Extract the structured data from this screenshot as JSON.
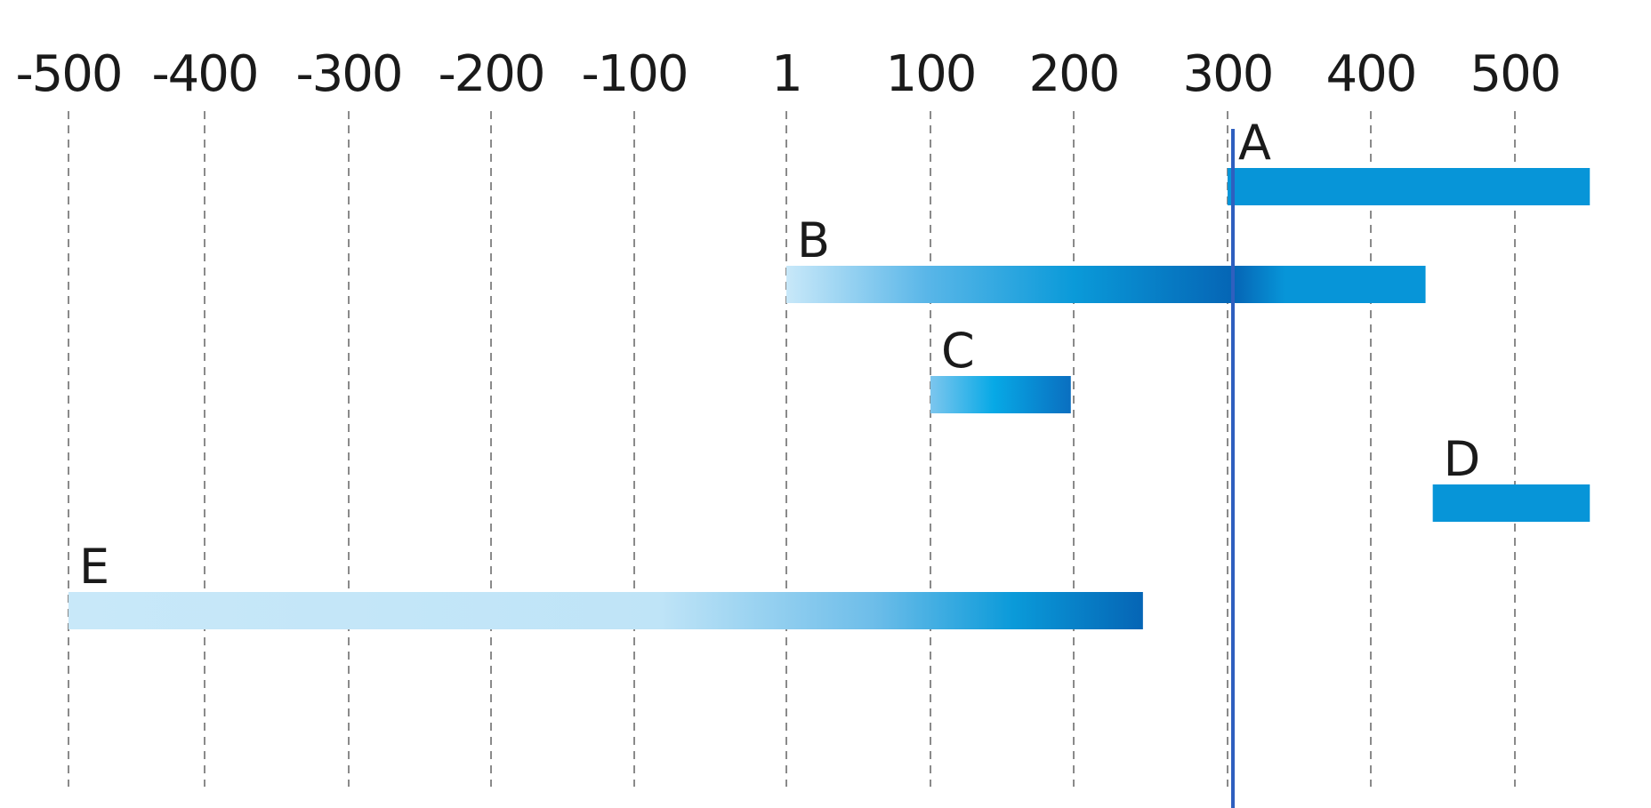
{
  "chart_data": {
    "type": "bar",
    "orientation": "horizontal-range",
    "title": "",
    "xlabel": "",
    "ylabel": "",
    "grid": true,
    "legend": "none",
    "x_ticks": [
      {
        "value": -500,
        "label": "-500"
      },
      {
        "value": -400,
        "label": "-400"
      },
      {
        "value": -300,
        "label": "-300"
      },
      {
        "value": -200,
        "label": "-200"
      },
      {
        "value": -100,
        "label": "-100"
      },
      {
        "value": 1,
        "label": "1"
      },
      {
        "value": 100,
        "label": "100"
      },
      {
        "value": 200,
        "label": "200"
      },
      {
        "value": 300,
        "label": "300"
      },
      {
        "value": 400,
        "label": "400"
      },
      {
        "value": 500,
        "label": "500"
      }
    ],
    "xlim": [
      -500,
      550
    ],
    "reference_line": {
      "x": 300,
      "color": "#2f5fbf"
    },
    "bars": [
      {
        "label": "A",
        "start": 300,
        "end": 552,
        "fade": "solid"
      },
      {
        "label": "B",
        "start": 1,
        "end": 438,
        "fade": "left-fade"
      },
      {
        "label": "C",
        "start": 100,
        "end": 198,
        "fade": "left-fade"
      },
      {
        "label": "D",
        "start": 443,
        "end": 552,
        "fade": "solid"
      },
      {
        "label": "E",
        "start": -500,
        "end": 245,
        "fade": "left-fade"
      }
    ],
    "colors": {
      "bar": "#0795d8",
      "bar_light": "#c6e7f8",
      "bar_dark": "#0a6fc0",
      "grid": "#8a8a8a",
      "text": "#1a1a1a"
    }
  }
}
